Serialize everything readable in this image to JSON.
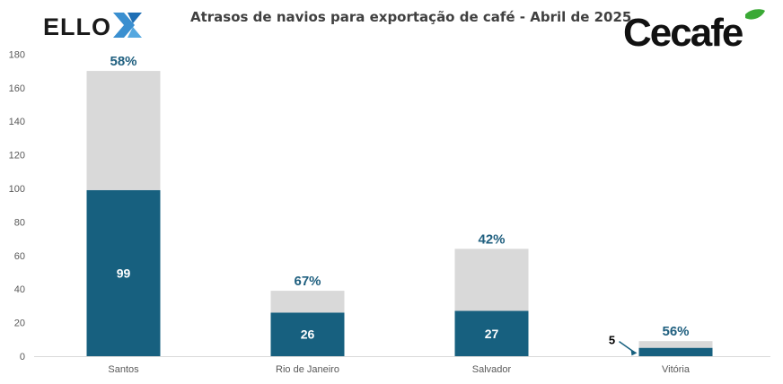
{
  "header": {
    "title": "Atrasos de navios para exportação de café - Abril de 2025",
    "logo_left_text": "ELLO",
    "logo_right_text": "Cecafe"
  },
  "colors": {
    "delayed": "#17607f",
    "remaining": "#d9d9d9",
    "pct_label": "#1f5f7f",
    "axis_text": "#595959",
    "grid": "#d9d9d9"
  },
  "chart_data": {
    "type": "bar",
    "stacked": true,
    "title": "Atrasos de navios para exportação de café - Abril de 2025",
    "xlabel": "",
    "ylabel": "",
    "ylim": [
      0,
      180
    ],
    "yticks": [
      0,
      20,
      40,
      60,
      80,
      100,
      120,
      140,
      160,
      180
    ],
    "categories": [
      "Santos",
      "Rio de Janeiro",
      "Salvador",
      "Vitória"
    ],
    "series": [
      {
        "values": [
          99,
          26,
          27,
          5
        ],
        "labels": [
          "99",
          "26",
          "27",
          "5"
        ]
      },
      {
        "values": [
          71,
          13,
          37,
          4
        ]
      }
    ],
    "percent_labels": [
      "58%",
      "67%",
      "42%",
      "56%"
    ],
    "grid": false
  }
}
